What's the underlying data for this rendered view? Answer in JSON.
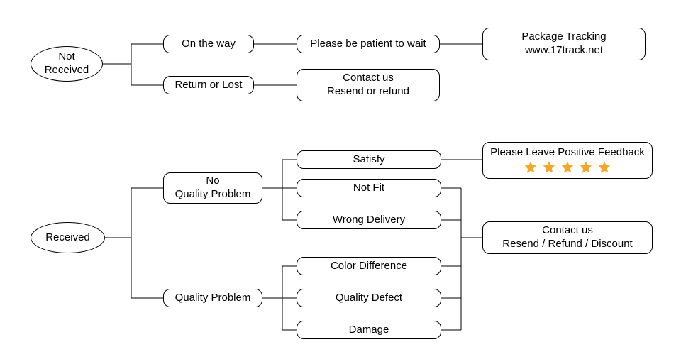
{
  "diagram": {
    "type": "flowchart",
    "background_color": "#ffffff",
    "border_color": "#000000",
    "text_color": "#000000",
    "font_family": "Arial",
    "font_size_pt": 11,
    "star_color": "#f5a623",
    "star_count": 5,
    "nodes": {
      "not_received": {
        "lines": [
          "Not",
          "Received"
        ]
      },
      "on_the_way": {
        "text": "On the way"
      },
      "please_wait": {
        "text": "Please be patient to wait"
      },
      "tracking": {
        "lines": [
          "Package Tracking",
          "www.17track.net"
        ]
      },
      "return_lost": {
        "text": "Return or Lost"
      },
      "contact_resend_refund": {
        "lines": [
          "Contact us",
          "Resend or refund"
        ]
      },
      "received": {
        "text": "Received"
      },
      "no_quality_problem": {
        "lines": [
          "No",
          "Quality Problem"
        ]
      },
      "quality_problem": {
        "text": "Quality Problem"
      },
      "satisfy": {
        "text": "Satisfy"
      },
      "not_fit": {
        "text": "Not Fit"
      },
      "wrong_delivery": {
        "text": "Wrong Delivery"
      },
      "color_difference": {
        "text": "Color Difference"
      },
      "quality_defect": {
        "text": "Quality Defect"
      },
      "damage": {
        "text": "Damage"
      },
      "positive_feedback": {
        "text": "Please Leave Positive Feedback"
      },
      "contact_rrd": {
        "lines": [
          "Contact us",
          "Resend / Refund / Discount"
        ]
      }
    }
  }
}
